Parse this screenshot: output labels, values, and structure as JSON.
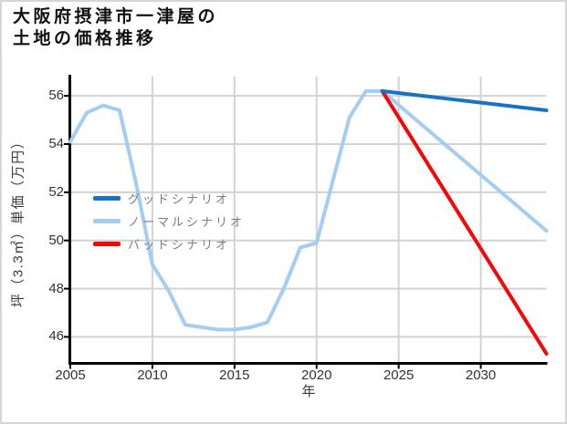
{
  "title": {
    "line1": "大阪府摂津市一津屋の",
    "line2": "土地の価格推移"
  },
  "axes": {
    "x_label": "年",
    "y_label": "坪（3.3㎡）単価（万円）",
    "x_ticks": [
      "2005",
      "2010",
      "2015",
      "2020",
      "2025",
      "2030"
    ],
    "y_ticks": [
      "56",
      "54",
      "52",
      "50",
      "48",
      "46"
    ]
  },
  "legend": {
    "items": [
      {
        "key": "good",
        "label": "グッドシナリオ",
        "color": "#1873c4"
      },
      {
        "key": "normal",
        "label": "ノーマルシナリオ",
        "color": "#a3cdf2"
      },
      {
        "key": "bad",
        "label": "バッドシナリオ",
        "color": "#fa0505"
      }
    ]
  },
  "chart_data": {
    "type": "line",
    "title": "大阪府摂津市一津屋の土地の価格推移",
    "xlabel": "年",
    "ylabel": "坪（3.3㎡）単価（万円）",
    "xlim": [
      2005,
      2034
    ],
    "ylim": [
      44.9,
      56.8
    ],
    "x_tick_values": [
      2005,
      2010,
      2015,
      2020,
      2025,
      2030
    ],
    "y_tick_values": [
      46,
      48,
      50,
      52,
      54,
      56
    ],
    "grid": true,
    "grid_color": "#d3d3d3",
    "axis_color": "#000000",
    "legend_position": "middle-left",
    "series": [
      {
        "key": "normal",
        "name": "ノーマルシナリオ",
        "color": "#a3cdf2",
        "note": "history 2005-2024 then forecast to 2034",
        "x": [
          2005,
          2006,
          2007,
          2008,
          2009,
          2010,
          2011,
          2012,
          2013,
          2014,
          2015,
          2016,
          2017,
          2018,
          2019,
          2020,
          2021,
          2022,
          2023,
          2024,
          2034
        ],
        "values": [
          54.1,
          55.3,
          55.6,
          55.4,
          52.4,
          49.0,
          47.9,
          46.5,
          46.4,
          46.3,
          46.3,
          46.4,
          46.6,
          48.0,
          49.7,
          49.9,
          52.5,
          55.1,
          56.2,
          56.2,
          50.4
        ]
      },
      {
        "key": "bad",
        "name": "バッドシナリオ",
        "color": "#fa0505",
        "x": [
          2024,
          2034
        ],
        "values": [
          56.2,
          45.3
        ]
      },
      {
        "key": "good",
        "name": "グッドシナリオ",
        "color": "#1873c4",
        "x": [
          2024,
          2034
        ],
        "values": [
          56.2,
          55.4
        ]
      }
    ]
  }
}
